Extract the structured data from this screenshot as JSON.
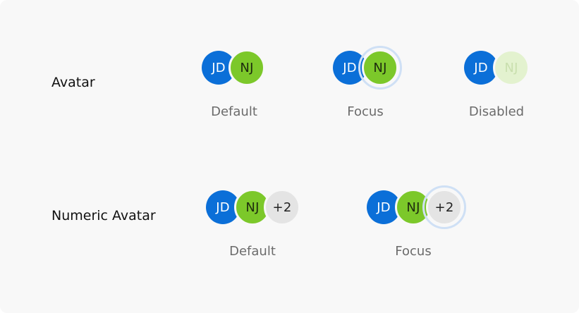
{
  "avatar_row": {
    "label": "Avatar",
    "default": {
      "left": "JD",
      "right": "NJ",
      "caption": "Default"
    },
    "focus": {
      "left": "JD",
      "right": "NJ",
      "caption": "Focus"
    },
    "disabled": {
      "left": "JD",
      "right": "NJ",
      "caption": "Disabled"
    }
  },
  "numeric_row": {
    "label": "Numeric Avatar",
    "default": {
      "first": "JD",
      "second": "NJ",
      "count": "+2",
      "caption": "Default"
    },
    "focus": {
      "first": "JD",
      "second": "NJ",
      "count": "+2",
      "caption": "Focus"
    }
  },
  "colors": {
    "primary_blue": "#0b6fd8",
    "avatar_green": "#7cc82a",
    "count_grey": "#e4e4e4",
    "focus_ring": "#cfe0f5"
  }
}
